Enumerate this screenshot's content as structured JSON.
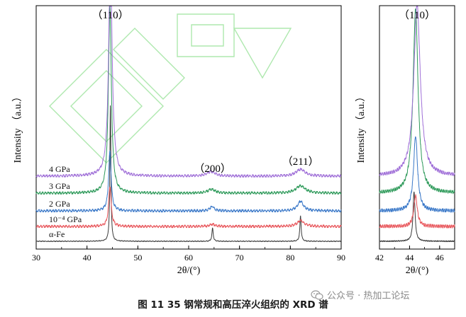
{
  "colors": {
    "alpha_fe": "#3a3a3a",
    "p1e4": "#e8555a",
    "p2": "#3a78c8",
    "p3": "#2e9a5a",
    "p4": "#a070d8",
    "watermark_outline": "#aee8ae"
  },
  "chart_data": [
    {
      "type": "line",
      "title": "",
      "xlabel": "2θ/(°)",
      "ylabel": "Intensity （a.u.）",
      "xlim": [
        30,
        90
      ],
      "xticks": [
        "30",
        "40",
        "50",
        "60",
        "70",
        "80",
        "90"
      ],
      "grid": false,
      "legend": "inline labels at left of each trace",
      "peak_labels": [
        {
          "text": "（110）",
          "x": 44.6
        },
        {
          "text": "（200）",
          "x": 64.7
        },
        {
          "text": "（211）",
          "x": 82.0
        }
      ],
      "series": [
        {
          "name": "α-Fe",
          "baseline": 0.0,
          "peaks": [
            {
              "x": 44.6,
              "h": 9.2,
              "w": 0.12
            },
            {
              "x": 64.7,
              "h": 0.9,
              "w": 0.15
            },
            {
              "x": 82.0,
              "h": 1.7,
              "w": 0.15
            }
          ]
        },
        {
          "name": "10⁻⁴ GPa",
          "baseline": 1.0,
          "peaks": [
            {
              "x": 44.5,
              "h": 2.7,
              "w": 0.3
            },
            {
              "x": 64.7,
              "h": 0.15,
              "w": 0.6
            },
            {
              "x": 82.0,
              "h": 0.4,
              "w": 0.8
            }
          ]
        },
        {
          "name": "2 GPa",
          "baseline": 2.1,
          "peaks": [
            {
              "x": 44.5,
              "h": 4.0,
              "w": 0.3
            },
            {
              "x": 64.6,
              "h": 0.3,
              "w": 0.5
            },
            {
              "x": 82.0,
              "h": 0.65,
              "w": 0.7
            }
          ]
        },
        {
          "name": "3 GPa",
          "baseline": 3.3,
          "peaks": [
            {
              "x": 44.5,
              "h": 12.5,
              "w": 0.35
            },
            {
              "x": 64.5,
              "h": 0.25,
              "w": 0.9
            },
            {
              "x": 82.0,
              "h": 0.5,
              "w": 1.1
            }
          ]
        },
        {
          "name": "4 GPa",
          "baseline": 4.5,
          "peaks": [
            {
              "x": 44.6,
              "h": 15.0,
              "w": 0.4
            },
            {
              "x": 64.4,
              "h": 0.3,
              "w": 1.0
            },
            {
              "x": 82.0,
              "h": 0.45,
              "w": 1.1
            }
          ]
        }
      ]
    },
    {
      "type": "line",
      "title": "",
      "xlabel": "2θ/(°)",
      "ylabel": "Intensity （a.u.）",
      "xlim": [
        42,
        47
      ],
      "xticks": [
        "42",
        "44",
        "46"
      ],
      "grid": false,
      "peak_labels": [
        {
          "text": "（110）",
          "x": 44.5
        }
      ],
      "series": [
        {
          "name": "α-Fe",
          "baseline": 0.0,
          "peaks": [
            {
              "x": 44.3,
              "h": 2.6,
              "w": 0.08
            }
          ]
        },
        {
          "name": "10⁻⁴ GPa",
          "baseline": 1.0,
          "peaks": [
            {
              "x": 44.4,
              "h": 1.6,
              "w": 0.14
            }
          ]
        },
        {
          "name": "2 GPa",
          "baseline": 2.1,
          "peaks": [
            {
              "x": 44.4,
              "h": 3.9,
              "w": 0.16
            }
          ]
        },
        {
          "name": "3 GPa",
          "baseline": 3.3,
          "peaks": [
            {
              "x": 44.4,
              "h": 9.6,
              "w": 0.2
            }
          ]
        },
        {
          "name": "4 GPa",
          "baseline": 4.5,
          "peaks": [
            {
              "x": 44.5,
              "h": 9.0,
              "w": 0.26
            }
          ]
        }
      ]
    }
  ],
  "caption": "图 11 35 钢常规和高压淬火组织的 XRD 谱",
  "watermark": {
    "text": "公众号 · 热加工论坛",
    "icon": "wechat-icon"
  }
}
